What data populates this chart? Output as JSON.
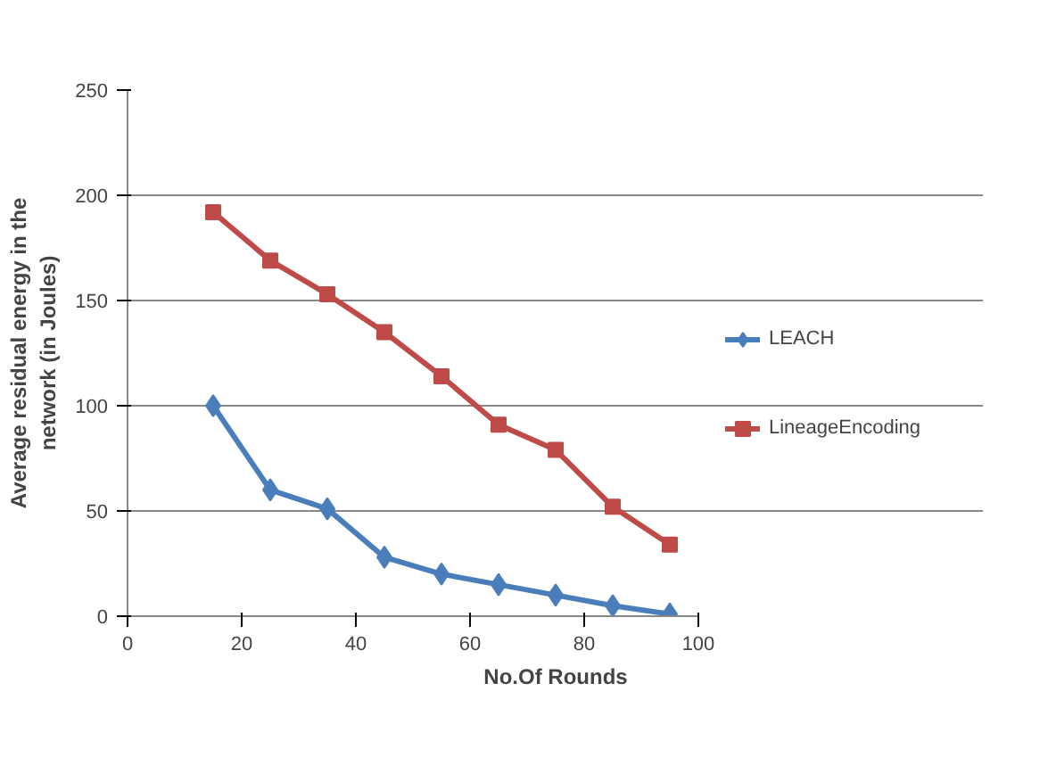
{
  "chart_data": {
    "type": "line",
    "xlabel": "No.Of Rounds",
    "ylabel": "Average residual energy in the network (in Joules)",
    "x": [
      15,
      25,
      35,
      45,
      55,
      65,
      75,
      85,
      95
    ],
    "series": [
      {
        "name": "LEACH",
        "color": "#4a7ebb",
        "values": [
          100,
          60,
          51,
          28,
          20,
          15,
          10,
          5,
          1
        ],
        "marker": "diamond"
      },
      {
        "name": "LineageEncoding",
        "color": "#be4b48",
        "values": [
          192,
          169,
          153,
          135,
          114,
          91,
          79,
          52,
          34
        ],
        "marker": "square"
      }
    ],
    "xlim": [
      0,
      100
    ],
    "ylim": [
      0,
      250
    ],
    "xticks": [
      0,
      20,
      40,
      60,
      80,
      100
    ],
    "yticks": [
      0,
      50,
      100,
      150,
      200,
      250
    ],
    "grid": "y",
    "legend": "right"
  }
}
